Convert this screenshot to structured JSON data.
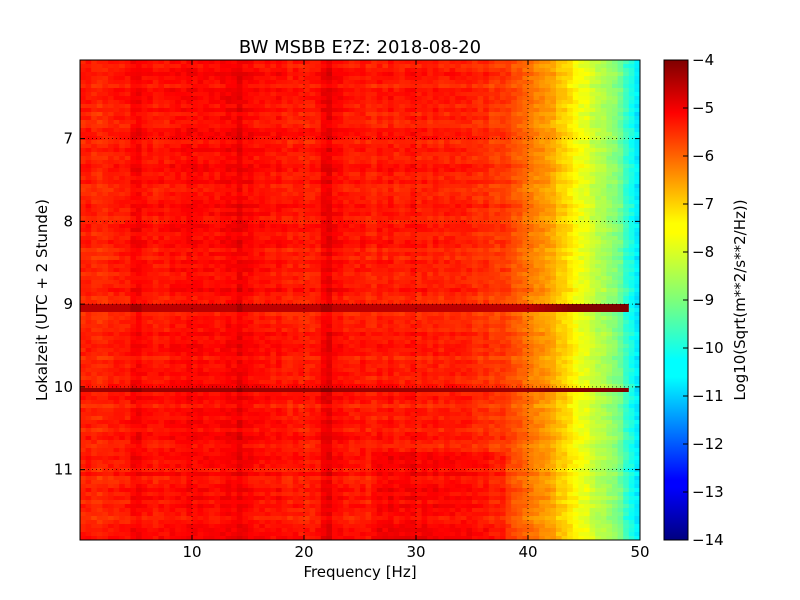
{
  "chart_data": {
    "type": "heatmap",
    "title": "BW MSBB E?Z: 2018-08-20",
    "xlabel": "Frequency [Hz]",
    "ylabel": "Lokalzeit (UTC + 2 Stunde)",
    "xlim": [
      0,
      50
    ],
    "ylim": [
      11.85,
      6.05
    ],
    "y_inverted": true,
    "x_ticks": [
      10,
      20,
      30,
      40,
      50
    ],
    "y_ticks": [
      7,
      8,
      9,
      10,
      11
    ],
    "grid": true,
    "colormap": "jet",
    "colorbar": {
      "label": "Log10(Sqrt(m**2/s**2/Hz))",
      "range": [
        -14,
        -4
      ],
      "ticks": [
        -4,
        -5,
        -6,
        -7,
        -8,
        -9,
        -10,
        -11,
        -12,
        -13,
        -14
      ]
    },
    "spectral_profile": {
      "frequency_hz": [
        0,
        5,
        10,
        14,
        20,
        22,
        25,
        30,
        35,
        38,
        40,
        42,
        43,
        44,
        45,
        46,
        47,
        48,
        49,
        50
      ],
      "log10_psd": [
        -5.6,
        -5.5,
        -5.3,
        -5.3,
        -5.5,
        -5.3,
        -5.5,
        -5.5,
        -5.6,
        -5.8,
        -6.4,
        -6.8,
        -7.3,
        -7.7,
        -8.0,
        -8.3,
        -8.6,
        -9.1,
        -9.8,
        -10.6
      ]
    },
    "strong_events": [
      {
        "time": 9.05,
        "log10_psd": -4.6
      },
      {
        "time": 10.03,
        "log10_psd": -4.3
      }
    ]
  }
}
